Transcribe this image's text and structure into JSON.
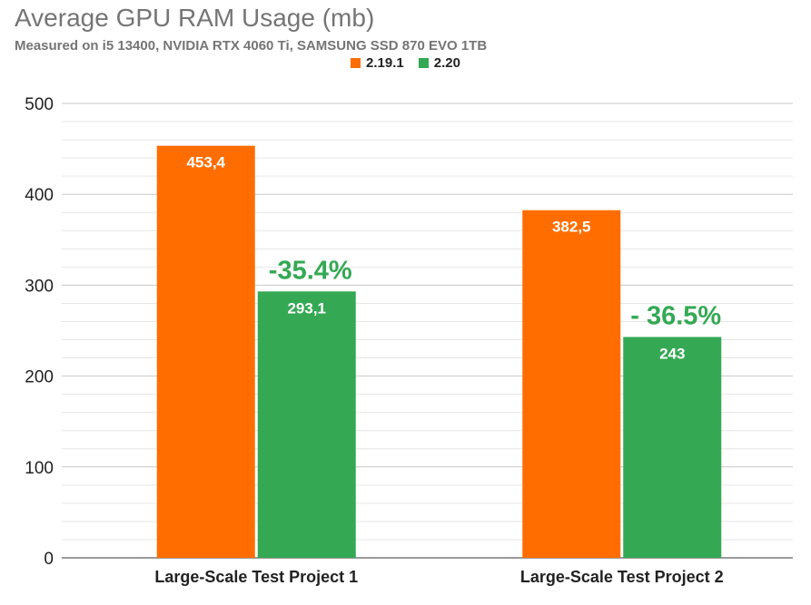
{
  "chart_data": {
    "type": "bar",
    "title": "Average GPU RAM Usage (mb)",
    "subtitle": "Measured on i5 13400, NVIDIA RTX 4060 Ti, SAMSUNG SSD 870 EVO 1TB",
    "categories": [
      "Large-Scale Test Project 1",
      "Large-Scale Test Project 2"
    ],
    "series": [
      {
        "name": "2.19.1",
        "color": "#ff6d01",
        "values": [
          453.4,
          382.5
        ],
        "labels": [
          "453,4",
          "382,5"
        ]
      },
      {
        "name": "2.20",
        "color": "#34a853",
        "values": [
          293.1,
          243
        ],
        "labels": [
          "293,1",
          "243"
        ]
      }
    ],
    "annotations": [
      "-35.4%",
      "- 36.5%"
    ],
    "annotation_color": "#34a853",
    "ylim": [
      0,
      500
    ],
    "yticks": [
      0,
      100,
      200,
      300,
      400,
      500
    ],
    "grid": true,
    "legend": "top"
  }
}
